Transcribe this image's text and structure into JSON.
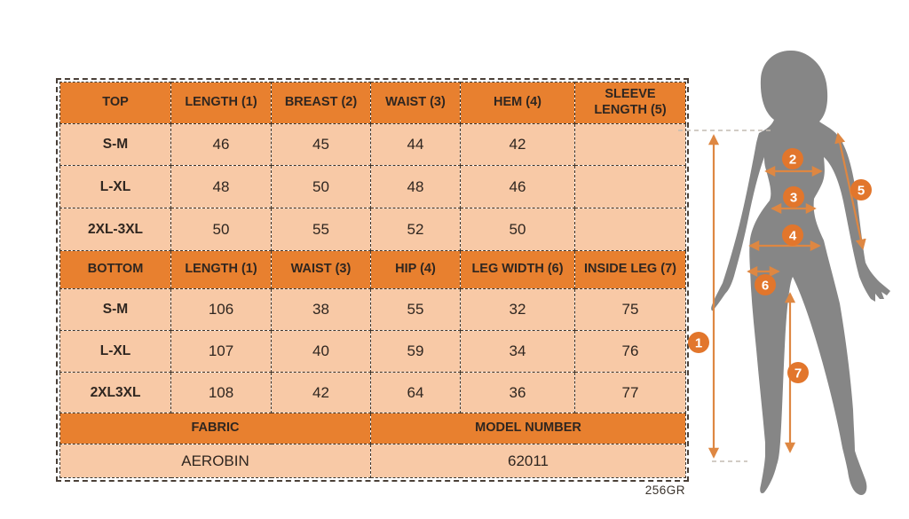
{
  "table": {
    "top": {
      "headers": [
        "TOP",
        "LENGTH (1)",
        "BREAST (2)",
        "WAIST (3)",
        "HEM (4)",
        "SLEEVE LENGTH (5)"
      ],
      "rows": [
        {
          "label": "S-M",
          "values": [
            "46",
            "45",
            "44",
            "42",
            ""
          ]
        },
        {
          "label": "L-XL",
          "values": [
            "48",
            "50",
            "48",
            "46",
            ""
          ]
        },
        {
          "label": "2XL-3XL",
          "values": [
            "50",
            "55",
            "52",
            "50",
            ""
          ]
        }
      ]
    },
    "bottom": {
      "headers": [
        "BOTTOM",
        "LENGTH (1)",
        "WAIST (3)",
        "HIP (4)",
        "LEG WIDTH (6)",
        "INSIDE LEG (7)"
      ],
      "rows": [
        {
          "label": "S-M",
          "values": [
            "106",
            "38",
            "55",
            "32",
            "75"
          ]
        },
        {
          "label": "L-XL",
          "values": [
            "107",
            "40",
            "59",
            "34",
            "76"
          ]
        },
        {
          "label": "2XL3XL",
          "values": [
            "108",
            "42",
            "64",
            "36",
            "77"
          ]
        }
      ]
    },
    "fabric_label": "FABRIC",
    "model_label": "MODEL NUMBER",
    "fabric_value": "AEROBIN",
    "model_value": "62011"
  },
  "footnote": "256GR",
  "figure": {
    "labels": [
      "1",
      "2",
      "3",
      "4",
      "5",
      "6",
      "7"
    ]
  },
  "colors": {
    "header_bg": "#E8802F",
    "row_bg": "#F8C9A6",
    "accent": "#DE8742",
    "circle": "#E2762C",
    "silhouette": "#868686",
    "text": "#2F2620"
  }
}
